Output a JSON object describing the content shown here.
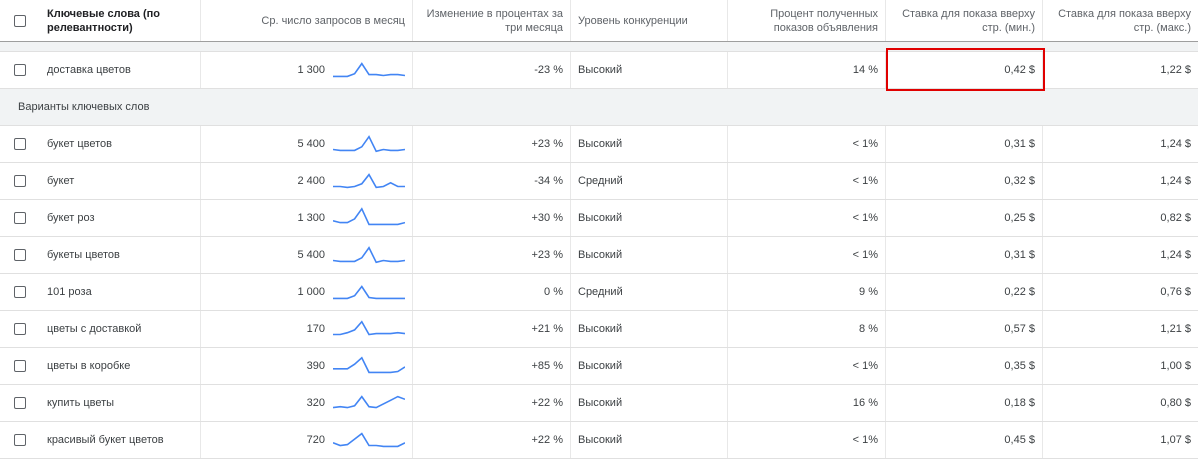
{
  "header": {
    "keyword": "Ключевые слова (по релевантности)",
    "avg_searches": "Ср. число запросов в месяц",
    "three_month_change": "Изменение в процентах за три месяца",
    "competition": "Уровень конкуренции",
    "impression_share": "Процент полученных показов объявления",
    "top_bid_low": "Ставка для показа вверху стр. (мин.)",
    "top_bid_high": "Ставка для показа вверху стр. (макс.)"
  },
  "main_row": {
    "keyword": "доставка цветов",
    "avg": "1 300",
    "change": "-23 %",
    "competition": "Высокий",
    "share": "14 %",
    "low": "0,42 $",
    "high": "1,22 $",
    "trend": [
      5,
      5,
      5,
      8,
      19,
      7,
      7,
      6,
      7,
      7,
      6
    ]
  },
  "group_label": "Варианты ключевых слов",
  "rows": [
    {
      "keyword": "букет цветов",
      "avg": "5 400",
      "change": "+23 %",
      "competition": "Высокий",
      "share": "< 1%",
      "low": "0,31 $",
      "high": "1,24 $",
      "trend": [
        6,
        5,
        5,
        5,
        9,
        20,
        4,
        6,
        5,
        5,
        6
      ]
    },
    {
      "keyword": "букет",
      "avg": "2 400",
      "change": "-34 %",
      "competition": "Средний",
      "share": "< 1%",
      "low": "0,32 $",
      "high": "1,24 $",
      "trend": [
        6,
        6,
        5,
        6,
        9,
        19,
        5,
        6,
        10,
        6,
        6
      ]
    },
    {
      "keyword": "букет роз",
      "avg": "1 300",
      "change": "+30 %",
      "competition": "Высокий",
      "share": "< 1%",
      "low": "0,25 $",
      "high": "0,82 $",
      "trend": [
        9,
        7,
        7,
        11,
        22,
        5,
        5,
        5,
        5,
        5,
        7
      ]
    },
    {
      "keyword": "букеты цветов",
      "avg": "5 400",
      "change": "+23 %",
      "competition": "Высокий",
      "share": "< 1%",
      "low": "0,31 $",
      "high": "1,24 $",
      "trend": [
        6,
        5,
        5,
        5,
        9,
        20,
        4,
        6,
        5,
        5,
        6
      ]
    },
    {
      "keyword": "101 роза",
      "avg": "1 000",
      "change": "0 %",
      "competition": "Средний",
      "share": "9 %",
      "low": "0,22 $",
      "high": "0,76 $",
      "trend": [
        5,
        5,
        5,
        8,
        18,
        6,
        5,
        5,
        5,
        5,
        5
      ]
    },
    {
      "keyword": "цветы с доставкой",
      "avg": "170",
      "change": "+21 %",
      "competition": "Высокий",
      "share": "8 %",
      "low": "0,57 $",
      "high": "1,21 $",
      "trend": [
        6,
        6,
        8,
        11,
        20,
        6,
        7,
        7,
        7,
        8,
        7
      ]
    },
    {
      "keyword": "цветы в коробке",
      "avg": "390",
      "change": "+85 %",
      "competition": "Высокий",
      "share": "< 1%",
      "low": "0,35 $",
      "high": "1,00 $",
      "trend": [
        9,
        9,
        9,
        14,
        21,
        5,
        5,
        5,
        5,
        6,
        11
      ]
    },
    {
      "keyword": "купить цветы",
      "avg": "320",
      "change": "+22 %",
      "competition": "Высокий",
      "share": "16 %",
      "low": "0,18 $",
      "high": "0,80 $",
      "trend": [
        7,
        8,
        7,
        9,
        19,
        8,
        7,
        11,
        15,
        19,
        16
      ]
    },
    {
      "keyword": "красивый букет цветов",
      "avg": "720",
      "change": "+22 %",
      "competition": "Высокий",
      "share": "< 1%",
      "low": "0,45 $",
      "high": "1,07 $",
      "trend": [
        9,
        6,
        7,
        13,
        19,
        6,
        6,
        5,
        5,
        5,
        9
      ]
    }
  ],
  "colors": {
    "sparkline": "#4285f4",
    "highlight": "#e00000"
  }
}
